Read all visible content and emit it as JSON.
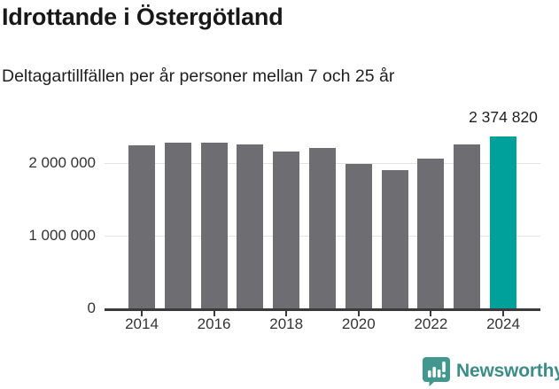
{
  "header": {
    "title": "Idrottande i Östergötland",
    "subtitle": "Deltagartillfällen per år personer mellan 7 och 25 år"
  },
  "chart_data": {
    "type": "bar",
    "title": "Idrottande i Östergötland",
    "subtitle": "Deltagartillfällen per år personer mellan 7 och 25 år",
    "categories": [
      "2014",
      "2015",
      "2016",
      "2017",
      "2018",
      "2019",
      "2020",
      "2021",
      "2022",
      "2023",
      "2024"
    ],
    "values": [
      2250000,
      2290000,
      2280000,
      2260000,
      2160000,
      2210000,
      1990000,
      1910000,
      2070000,
      2260000,
      2374820
    ],
    "highlight_index": 10,
    "highlight_label": "2 374 820",
    "xlabel": "",
    "ylabel": "",
    "ylim": [
      0,
      2450000
    ],
    "yticks": [
      {
        "value": 0,
        "label": "0"
      },
      {
        "value": 1000000,
        "label": "1 000 000"
      },
      {
        "value": 2000000,
        "label": "2 000 000"
      }
    ],
    "xtick_labels": [
      "2014",
      "2016",
      "2018",
      "2020",
      "2022",
      "2024"
    ],
    "grid": "horizontal",
    "legend": null,
    "colors": {
      "bar": "#6d6d72",
      "highlight": "#00a09b",
      "gridline": "#e3e3e3",
      "axis": "#3a3a3a",
      "text": "#333333"
    }
  },
  "footer": {
    "logo_text": "Newsworthy",
    "logo_icon": "newsworthy-bar-chart-speech-bubble-icon",
    "logo_icon_color": "#42978f",
    "logo_text_color": "#3a8d89"
  }
}
